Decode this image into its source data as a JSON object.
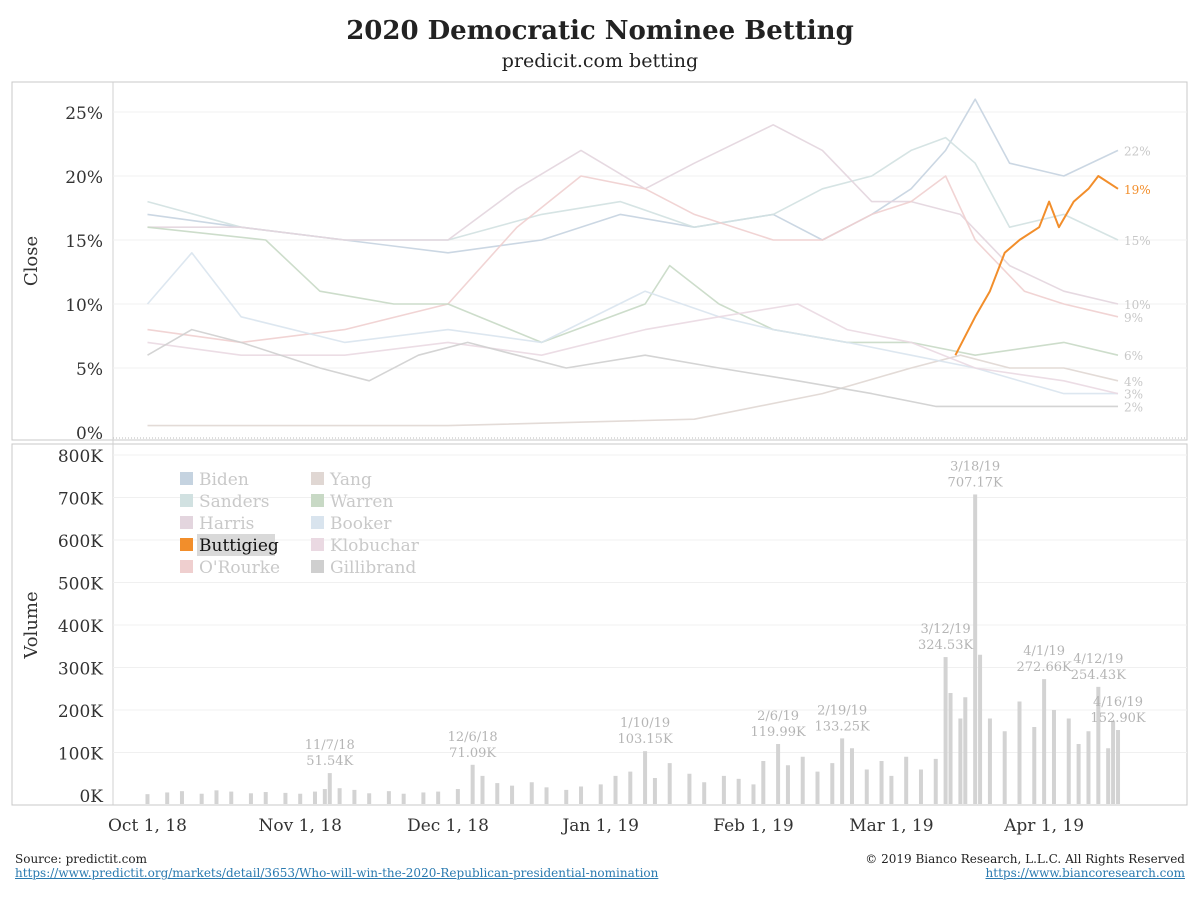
{
  "header": {
    "title": "2020 Democratic Nominee Betting",
    "subtitle": "predicit.com betting"
  },
  "footer": {
    "source": "Source: predictit.com",
    "source_url": "https://www.predictit.org/markets/detail/3653/Who-will-win-the-2020-Republican-presidential-nomination",
    "copyright": "© 2019 Bianco Research, L.L.C. All Rights Reserved",
    "site_url": "https://www.biancoresearch.com"
  },
  "colors": {
    "highlight": "#f28e2b",
    "muted": "#d3d3d3"
  },
  "chart_data": [
    {
      "type": "line",
      "ylabel": "Close",
      "ylim": [
        0,
        27
      ],
      "y_ticks": [
        0,
        5,
        10,
        15,
        20,
        25
      ],
      "y_tick_labels": [
        "0%",
        "5%",
        "10%",
        "15%",
        "20%",
        "25%"
      ],
      "x_tick_labels": [
        "Oct 1, 18",
        "Nov 1, 18",
        "Dec 1, 18",
        "Jan 1, 19",
        "Feb 1, 19",
        "Mar 1, 19",
        "Apr 1, 19"
      ],
      "x_tick_dates": [
        "2018-10-01",
        "2018-11-01",
        "2018-12-01",
        "2019-01-01",
        "2019-02-01",
        "2019-03-01",
        "2019-04-01"
      ],
      "x_range": [
        "2018-09-24",
        "2019-04-30"
      ],
      "grid": true,
      "highlighted_series": "Buttigieg",
      "series": [
        {
          "name": "Biden",
          "color": "#c5d3e0",
          "end_label": "22%",
          "points": [
            [
              "2018-10-01",
              17
            ],
            [
              "2018-10-20",
              16
            ],
            [
              "2018-11-10",
              15
            ],
            [
              "2018-12-01",
              14
            ],
            [
              "2018-12-20",
              15
            ],
            [
              "2019-01-05",
              17
            ],
            [
              "2019-01-20",
              16
            ],
            [
              "2019-02-05",
              17
            ],
            [
              "2019-02-15",
              15
            ],
            [
              "2019-02-25",
              17
            ],
            [
              "2019-03-05",
              19
            ],
            [
              "2019-03-12",
              22
            ],
            [
              "2019-03-18",
              26
            ],
            [
              "2019-03-25",
              21
            ],
            [
              "2019-04-05",
              20
            ],
            [
              "2019-04-16",
              22
            ]
          ]
        },
        {
          "name": "Sanders",
          "color": "#d1e1e1",
          "end_label": "15%",
          "points": [
            [
              "2018-10-01",
              18
            ],
            [
              "2018-10-20",
              16
            ],
            [
              "2018-11-10",
              15
            ],
            [
              "2018-12-01",
              15
            ],
            [
              "2018-12-20",
              17
            ],
            [
              "2019-01-05",
              18
            ],
            [
              "2019-01-20",
              16
            ],
            [
              "2019-02-05",
              17
            ],
            [
              "2019-02-15",
              19
            ],
            [
              "2019-02-25",
              20
            ],
            [
              "2019-03-05",
              22
            ],
            [
              "2019-03-12",
              23
            ],
            [
              "2019-03-18",
              21
            ],
            [
              "2019-03-25",
              16
            ],
            [
              "2019-04-05",
              17
            ],
            [
              "2019-04-16",
              15
            ]
          ]
        },
        {
          "name": "Harris",
          "color": "#e3d5de",
          "end_label": "10%",
          "points": [
            [
              "2018-10-01",
              16
            ],
            [
              "2018-10-20",
              16
            ],
            [
              "2018-11-10",
              15
            ],
            [
              "2018-12-01",
              15
            ],
            [
              "2018-12-15",
              19
            ],
            [
              "2018-12-28",
              22
            ],
            [
              "2019-01-10",
              19
            ],
            [
              "2019-01-20",
              21
            ],
            [
              "2019-02-05",
              24
            ],
            [
              "2019-02-15",
              22
            ],
            [
              "2019-02-25",
              18
            ],
            [
              "2019-03-05",
              18
            ],
            [
              "2019-03-15",
              17
            ],
            [
              "2019-03-25",
              13
            ],
            [
              "2019-04-05",
              11
            ],
            [
              "2019-04-16",
              10
            ]
          ]
        },
        {
          "name": "Buttigieg",
          "color": "#f28e2b",
          "end_label": "19%",
          "points": [
            [
              "2019-03-14",
              6
            ],
            [
              "2019-03-18",
              9
            ],
            [
              "2019-03-21",
              11
            ],
            [
              "2019-03-24",
              14
            ],
            [
              "2019-03-27",
              15
            ],
            [
              "2019-03-31",
              16
            ],
            [
              "2019-04-02",
              18
            ],
            [
              "2019-04-04",
              16
            ],
            [
              "2019-04-07",
              18
            ],
            [
              "2019-04-10",
              19
            ],
            [
              "2019-04-12",
              20
            ],
            [
              "2019-04-16",
              19
            ]
          ]
        },
        {
          "name": "O'Rourke",
          "color": "#efcfcf",
          "end_label": "9%",
          "points": [
            [
              "2018-10-01",
              8
            ],
            [
              "2018-10-20",
              7
            ],
            [
              "2018-11-10",
              8
            ],
            [
              "2018-12-01",
              10
            ],
            [
              "2018-12-15",
              16
            ],
            [
              "2018-12-28",
              20
            ],
            [
              "2019-01-10",
              19
            ],
            [
              "2019-01-20",
              17
            ],
            [
              "2019-02-05",
              15
            ],
            [
              "2019-02-15",
              15
            ],
            [
              "2019-02-25",
              17
            ],
            [
              "2019-03-05",
              18
            ],
            [
              "2019-03-12",
              20
            ],
            [
              "2019-03-18",
              15
            ],
            [
              "2019-03-28",
              11
            ],
            [
              "2019-04-05",
              10
            ],
            [
              "2019-04-16",
              9
            ]
          ]
        },
        {
          "name": "Yang",
          "color": "#e0d7d3",
          "end_label": "4%",
          "points": [
            [
              "2018-10-01",
              0.5
            ],
            [
              "2018-12-01",
              0.5
            ],
            [
              "2019-01-20",
              1
            ],
            [
              "2019-02-15",
              3
            ],
            [
              "2019-03-05",
              5
            ],
            [
              "2019-03-15",
              6
            ],
            [
              "2019-03-25",
              5
            ],
            [
              "2019-04-05",
              5
            ],
            [
              "2019-04-16",
              4
            ]
          ]
        },
        {
          "name": "Warren",
          "color": "#c8d9c5",
          "end_label": "6%",
          "points": [
            [
              "2018-10-01",
              16
            ],
            [
              "2018-10-25",
              15
            ],
            [
              "2018-11-05",
              11
            ],
            [
              "2018-11-20",
              10
            ],
            [
              "2018-12-01",
              10
            ],
            [
              "2018-12-20",
              7
            ],
            [
              "2019-01-10",
              10
            ],
            [
              "2019-01-15",
              13
            ],
            [
              "2019-01-25",
              10
            ],
            [
              "2019-02-05",
              8
            ],
            [
              "2019-02-20",
              7
            ],
            [
              "2019-03-05",
              7
            ],
            [
              "2019-03-18",
              6
            ],
            [
              "2019-04-05",
              7
            ],
            [
              "2019-04-16",
              6
            ]
          ]
        },
        {
          "name": "Booker",
          "color": "#d9e4ee",
          "end_label": "3%",
          "points": [
            [
              "2018-10-01",
              10
            ],
            [
              "2018-10-10",
              14
            ],
            [
              "2018-10-20",
              9
            ],
            [
              "2018-11-10",
              7
            ],
            [
              "2018-12-01",
              8
            ],
            [
              "2018-12-20",
              7
            ],
            [
              "2019-01-10",
              11
            ],
            [
              "2019-01-25",
              9
            ],
            [
              "2019-02-05",
              8
            ],
            [
              "2019-02-20",
              7
            ],
            [
              "2019-03-05",
              6
            ],
            [
              "2019-03-18",
              5
            ],
            [
              "2019-04-05",
              3
            ],
            [
              "2019-04-16",
              3
            ]
          ]
        },
        {
          "name": "Klobuchar",
          "color": "#ead9e2",
          "end_label": "",
          "points": [
            [
              "2018-10-01",
              7
            ],
            [
              "2018-10-20",
              6
            ],
            [
              "2018-11-10",
              6
            ],
            [
              "2018-12-01",
              7
            ],
            [
              "2018-12-20",
              6
            ],
            [
              "2019-01-10",
              8
            ],
            [
              "2019-01-25",
              9
            ],
            [
              "2019-02-10",
              10
            ],
            [
              "2019-02-20",
              8
            ],
            [
              "2019-03-05",
              7
            ],
            [
              "2019-03-18",
              5
            ],
            [
              "2019-04-05",
              4
            ],
            [
              "2019-04-16",
              3
            ]
          ]
        },
        {
          "name": "Gillibrand",
          "color": "#cfcfcf",
          "end_label": "2%",
          "points": [
            [
              "2018-10-01",
              6
            ],
            [
              "2018-10-10",
              8
            ],
            [
              "2018-10-20",
              7
            ],
            [
              "2018-11-05",
              5
            ],
            [
              "2018-11-15",
              4
            ],
            [
              "2018-11-25",
              6
            ],
            [
              "2018-12-05",
              7
            ],
            [
              "2018-12-15",
              6
            ],
            [
              "2018-12-25",
              5
            ],
            [
              "2019-01-10",
              6
            ],
            [
              "2019-01-25",
              5
            ],
            [
              "2019-02-10",
              4
            ],
            [
              "2019-02-25",
              3
            ],
            [
              "2019-03-10",
              2
            ],
            [
              "2019-03-25",
              2
            ],
            [
              "2019-04-05",
              2
            ],
            [
              "2019-04-16",
              2
            ]
          ]
        }
      ],
      "legend": {
        "placement": "top-left",
        "columns": [
          [
            "Biden",
            "Sanders",
            "Harris",
            "Buttigieg",
            "O'Rourke"
          ],
          [
            "Yang",
            "Warren",
            "Booker",
            "Klobuchar",
            "Gillibrand"
          ]
        ]
      }
    },
    {
      "type": "bar",
      "ylabel": "Volume",
      "ylim": [
        0,
        800000
      ],
      "y_ticks": [
        0,
        100000,
        200000,
        300000,
        400000,
        500000,
        600000,
        700000,
        800000
      ],
      "y_tick_labels": [
        "0K",
        "100K",
        "200K",
        "300K",
        "400K",
        "500K",
        "600K",
        "700K",
        "800K"
      ],
      "color": "#d3d3d3",
      "bars": [
        [
          "2018-10-01",
          2000
        ],
        [
          "2018-10-05",
          6000
        ],
        [
          "2018-10-08",
          9000
        ],
        [
          "2018-10-12",
          3000
        ],
        [
          "2018-10-15",
          11000
        ],
        [
          "2018-10-18",
          8000
        ],
        [
          "2018-10-22",
          4000
        ],
        [
          "2018-10-25",
          7000
        ],
        [
          "2018-10-29",
          5000
        ],
        [
          "2018-11-01",
          3000
        ],
        [
          "2018-11-04",
          8000
        ],
        [
          "2018-11-06",
          14000
        ],
        [
          "2018-11-07",
          51540
        ],
        [
          "2018-11-09",
          16000
        ],
        [
          "2018-11-12",
          12000
        ],
        [
          "2018-11-15",
          4000
        ],
        [
          "2018-11-19",
          9000
        ],
        [
          "2018-11-22",
          3000
        ],
        [
          "2018-11-26",
          6000
        ],
        [
          "2018-11-29",
          8000
        ],
        [
          "2018-12-03",
          14000
        ],
        [
          "2018-12-06",
          71090
        ],
        [
          "2018-12-08",
          45000
        ],
        [
          "2018-12-11",
          28000
        ],
        [
          "2018-12-14",
          22000
        ],
        [
          "2018-12-18",
          30000
        ],
        [
          "2018-12-21",
          18000
        ],
        [
          "2018-12-25",
          12000
        ],
        [
          "2018-12-28",
          20000
        ],
        [
          "2019-01-01",
          25000
        ],
        [
          "2019-01-04",
          45000
        ],
        [
          "2019-01-07",
          55000
        ],
        [
          "2019-01-10",
          103150
        ],
        [
          "2019-01-12",
          40000
        ],
        [
          "2019-01-15",
          75000
        ],
        [
          "2019-01-19",
          50000
        ],
        [
          "2019-01-22",
          30000
        ],
        [
          "2019-01-26",
          45000
        ],
        [
          "2019-01-29",
          38000
        ],
        [
          "2019-02-01",
          25000
        ],
        [
          "2019-02-03",
          80000
        ],
        [
          "2019-02-06",
          119990
        ],
        [
          "2019-02-08",
          70000
        ],
        [
          "2019-02-11",
          90000
        ],
        [
          "2019-02-14",
          55000
        ],
        [
          "2019-02-17",
          75000
        ],
        [
          "2019-02-19",
          133250
        ],
        [
          "2019-02-21",
          110000
        ],
        [
          "2019-02-24",
          60000
        ],
        [
          "2019-02-27",
          80000
        ],
        [
          "2019-03-01",
          45000
        ],
        [
          "2019-03-04",
          90000
        ],
        [
          "2019-03-07",
          60000
        ],
        [
          "2019-03-10",
          85000
        ],
        [
          "2019-03-12",
          324530
        ],
        [
          "2019-03-13",
          240000
        ],
        [
          "2019-03-15",
          180000
        ],
        [
          "2019-03-16",
          230000
        ],
        [
          "2019-03-18",
          707170
        ],
        [
          "2019-03-19",
          330000
        ],
        [
          "2019-03-21",
          180000
        ],
        [
          "2019-03-24",
          150000
        ],
        [
          "2019-03-27",
          220000
        ],
        [
          "2019-03-30",
          160000
        ],
        [
          "2019-04-01",
          272660
        ],
        [
          "2019-04-03",
          200000
        ],
        [
          "2019-04-06",
          180000
        ],
        [
          "2019-04-08",
          120000
        ],
        [
          "2019-04-10",
          150000
        ],
        [
          "2019-04-12",
          254430
        ],
        [
          "2019-04-14",
          110000
        ],
        [
          "2019-04-15",
          175000
        ],
        [
          "2019-04-16",
          152900
        ]
      ],
      "annotations": [
        {
          "date": "2018-11-07",
          "line1": "11/7/18",
          "line2": "51.54K"
        },
        {
          "date": "2018-12-06",
          "line1": "12/6/18",
          "line2": "71.09K"
        },
        {
          "date": "2019-01-10",
          "line1": "1/10/19",
          "line2": "103.15K"
        },
        {
          "date": "2019-02-06",
          "line1": "2/6/19",
          "line2": "119.99K"
        },
        {
          "date": "2019-02-19",
          "line1": "2/19/19",
          "line2": "133.25K"
        },
        {
          "date": "2019-03-12",
          "line1": "3/12/19",
          "line2": "324.53K"
        },
        {
          "date": "2019-03-18",
          "line1": "3/18/19",
          "line2": "707.17K"
        },
        {
          "date": "2019-04-01",
          "line1": "4/1/19",
          "line2": "272.66K"
        },
        {
          "date": "2019-04-12",
          "line1": "4/12/19",
          "line2": "254.43K"
        },
        {
          "date": "2019-04-16",
          "line1": "4/16/19",
          "line2": "152.90K"
        }
      ]
    }
  ]
}
